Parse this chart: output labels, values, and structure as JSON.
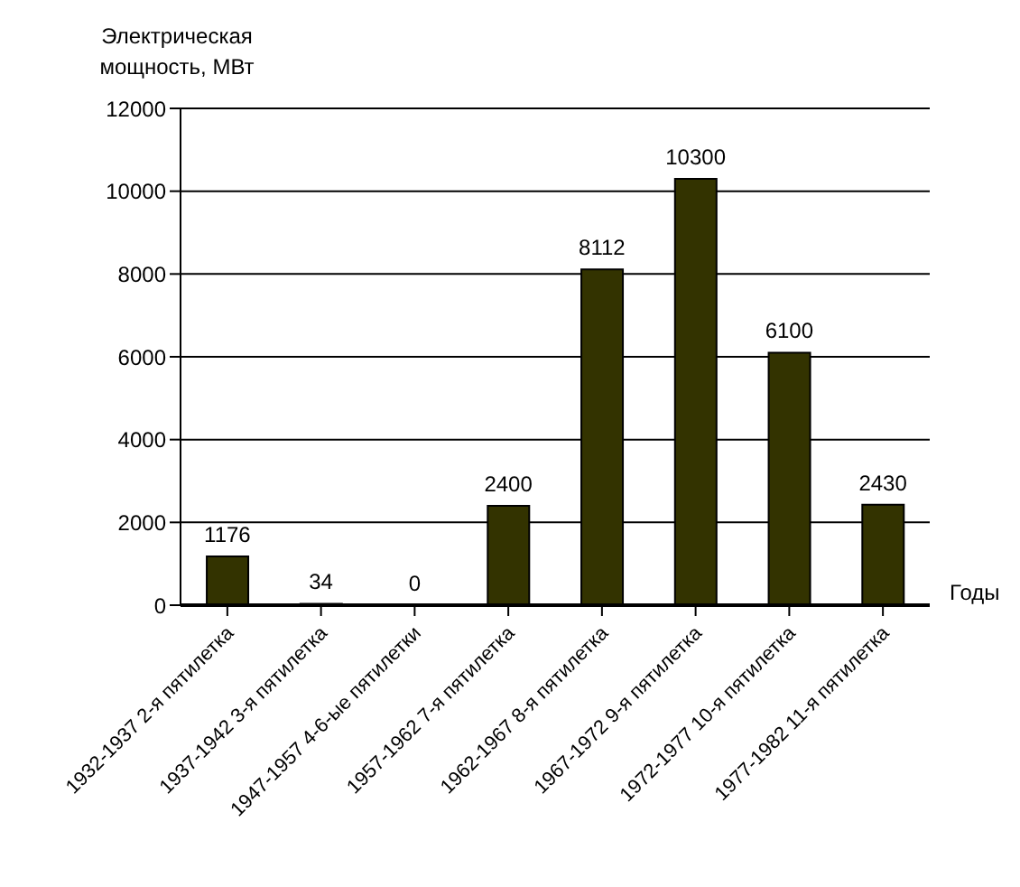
{
  "chart_data": {
    "type": "bar",
    "ylabel": "Электрическая мощность, МВт",
    "xlabel": "Годы",
    "categories": [
      "1932-1937 2-я пятилетка",
      "1937-1942 3-я пятилетка",
      "1947-1957 4-6-ые пятилетки",
      "1957-1962 7-я пятилетка",
      "1962-1967 8-я пятилетка",
      "1967-1972 9-я пятилетка",
      "1972-1977 10-я пятилетка",
      "1977-1982 11-я пятилетка"
    ],
    "values": [
      1176,
      34,
      0,
      2400,
      8112,
      10300,
      6100,
      2430
    ],
    "color": "#333300",
    "ylim": [
      0,
      12000
    ],
    "yticks": [
      0,
      2000,
      4000,
      6000,
      8000,
      10000,
      12000
    ],
    "grid": "y",
    "data_labels": true
  }
}
